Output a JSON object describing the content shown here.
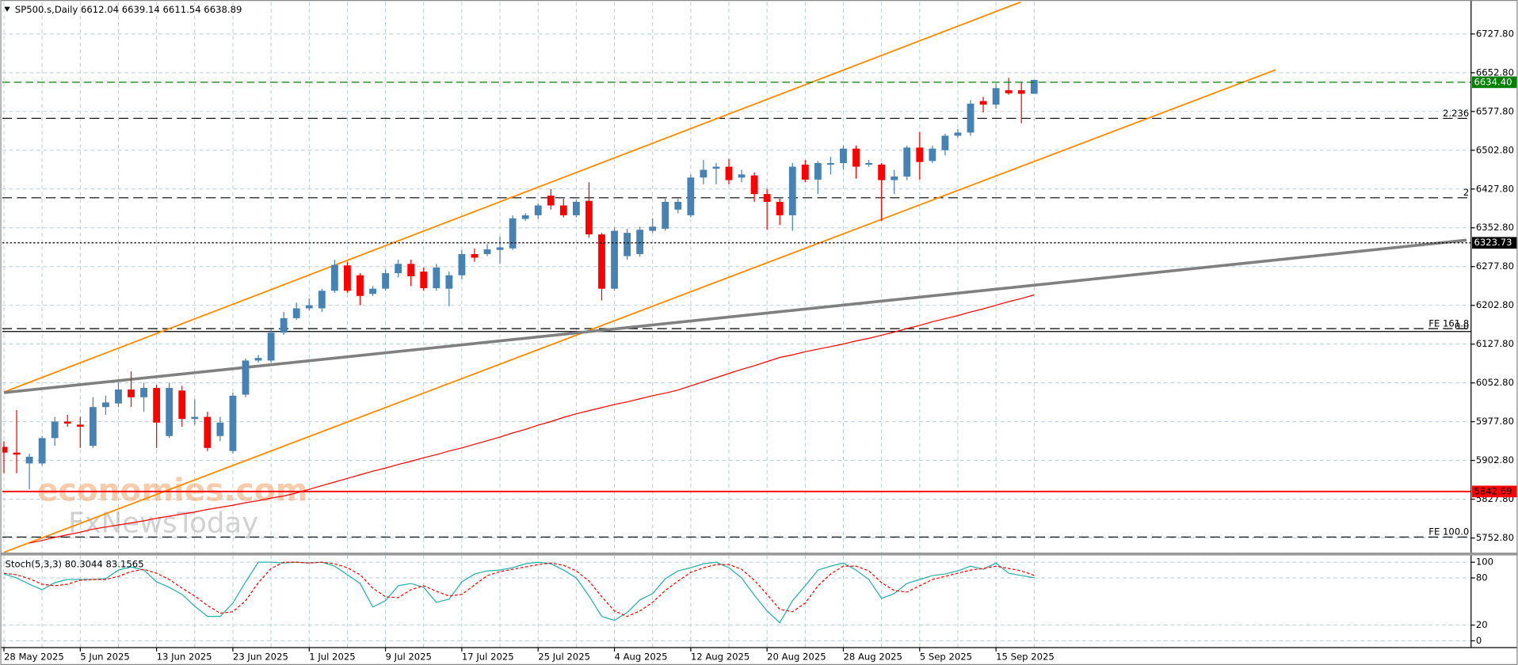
{
  "chart_data": [
    {
      "type": "candlestick",
      "title": "SP500.s,Daily",
      "categories": [
        "28 May 2025",
        null,
        null,
        null,
        null,
        null,
        "5 Jun 2025",
        null,
        null,
        null,
        null,
        null,
        "13 Jun 2025",
        null,
        null,
        null,
        null,
        null,
        "23 Jun 2025",
        null,
        null,
        null,
        null,
        null,
        "1 Jul 2025",
        null,
        null,
        null,
        null,
        null,
        "9 Jul 2025",
        null,
        null,
        null,
        null,
        null,
        "17 Jul 2025",
        null,
        null,
        null,
        null,
        null,
        "25 Jul 2025",
        null,
        null,
        null,
        null,
        null,
        "4 Aug 2025",
        null,
        null,
        null,
        null,
        null,
        "12 Aug 2025",
        null,
        null,
        null,
        null,
        null,
        "20 Aug 2025",
        null,
        null,
        null,
        null,
        null,
        "28 Aug 2025",
        null,
        null,
        null,
        null,
        null,
        "5 Sep 2025",
        null,
        null,
        null,
        null,
        null,
        "15 Sep 2025",
        null,
        null,
        null
      ],
      "open": [
        5929,
        5918,
        5897,
        5897,
        5946,
        5978,
        5972,
        5931,
        6006,
        6013,
        6040,
        6025,
        6043,
        5950,
        6038,
        5983,
        5987,
        5950,
        5921,
        6030,
        6096,
        6096,
        6150,
        6178,
        6197,
        6197,
        6231,
        6280,
        6261,
        6225,
        6235,
        6265,
        6283,
        6268,
        6236,
        6235,
        6261,
        6302,
        6302,
        6310,
        6313,
        6370,
        6377,
        6415,
        6396,
        6377,
        6405,
        6340,
        6235,
        6298,
        6302,
        6347,
        6351,
        6388,
        6377,
        6450,
        6467,
        6471,
        6450,
        6454,
        6418,
        6403,
        6377,
        6475,
        6446,
        6475,
        6478,
        6506,
        6475,
        6475,
        6445,
        6452,
        6508,
        6482,
        6503,
        6531,
        6537,
        6598,
        6591,
        6619,
        6619,
        6612.04
      ],
      "high": [
        5940,
        6000,
        5916,
        5950,
        5987,
        5991,
        5987,
        6025,
        6028,
        6053,
        6075,
        6053,
        6049,
        6053,
        6047,
        6021,
        5997,
        5987,
        6034,
        6100,
        6107,
        6156,
        6190,
        6208,
        6216,
        6235,
        6291,
        6287,
        6265,
        6240,
        6272,
        6291,
        6291,
        6276,
        6283,
        6268,
        6310,
        6313,
        6321,
        6336,
        6377,
        6381,
        6400,
        6428,
        6409,
        6407,
        6441,
        6343,
        6353,
        6351,
        6355,
        6371,
        6409,
        6409,
        6456,
        6484,
        6478,
        6486,
        6465,
        6460,
        6428,
        6409,
        6478,
        6484,
        6482,
        6490,
        6512,
        6512,
        6484,
        6478,
        6465,
        6512,
        6538,
        6512,
        6535,
        6544,
        6600,
        6606,
        6632,
        6643,
        6634,
        6639.14
      ],
      "low": [
        5878,
        5878,
        5847,
        5893,
        5931,
        5968,
        5927,
        5927,
        5991,
        6006,
        6006,
        5997,
        5927,
        5946,
        5968,
        5972,
        5921,
        5940,
        5916,
        6025,
        6092,
        6092,
        6146,
        6175,
        6193,
        6190,
        6227,
        6227,
        6203,
        6221,
        6231,
        6257,
        6240,
        6231,
        6231,
        6201,
        6253,
        6287,
        6298,
        6283,
        6310,
        6366,
        6370,
        6388,
        6373,
        6373,
        6334,
        6212,
        6231,
        6291,
        6297,
        6343,
        6347,
        6381,
        6373,
        6437,
        6437,
        6437,
        6441,
        6403,
        6349,
        6358,
        6347,
        6441,
        6418,
        6456,
        6465,
        6448,
        6471,
        6366,
        6418,
        6445,
        6446,
        6478,
        6493,
        6527,
        6531,
        6576,
        6583,
        6610,
        6555,
        6611.54
      ],
      "close": [
        5918,
        5914,
        5910,
        5946,
        5978,
        5974,
        5968,
        6006,
        6015,
        6040,
        6025,
        6043,
        5976,
        6043,
        5983,
        5987,
        5927,
        5976,
        6028,
        6096,
        6101,
        6150,
        6178,
        6197,
        6203,
        6231,
        6281,
        6231,
        6221,
        6235,
        6265,
        6283,
        6259,
        6236,
        6276,
        6261,
        6302,
        6295,
        6311,
        6315,
        6371,
        6377,
        6396,
        6396,
        6377,
        6403,
        6340,
        6235,
        6347,
        6343,
        6349,
        6355,
        6403,
        6403,
        6450,
        6465,
        6471,
        6445,
        6456,
        6418,
        6403,
        6377,
        6471,
        6446,
        6478,
        6478,
        6506,
        6471,
        6478,
        6445,
        6452,
        6508,
        6480,
        6506,
        6531,
        6537,
        6593,
        6591,
        6623,
        6613,
        6612,
        6638.89
      ],
      "up_color": "#4682b4",
      "down_color": "#ff0000",
      "ma": {
        "color": "#ff0000",
        "values": [
          null,
          null,
          5743,
          5748,
          5754,
          5759,
          5764,
          5770,
          5774,
          5778,
          5782,
          5786,
          5791,
          5795,
          5799,
          5803,
          5808,
          5812,
          5816,
          5821,
          5825,
          5830,
          5834,
          5840,
          5847,
          5854,
          5861,
          5868,
          5875,
          5882,
          5888,
          5895,
          5901,
          5908,
          5914,
          5921,
          5927,
          5934,
          5941,
          5948,
          5956,
          5963,
          5971,
          5978,
          5986,
          5993,
          5999,
          6005,
          6011,
          6016,
          6022,
          6028,
          6033,
          6039,
          6047,
          6055,
          6063,
          6071,
          6079,
          6086,
          6094,
          6102,
          6107,
          6113,
          6118,
          6123,
          6128,
          6134,
          6139,
          6145,
          6151,
          6158,
          6164,
          6171,
          6177,
          6183,
          6190,
          6196,
          6203,
          6210,
          6216,
          6223
        ]
      },
      "trendlines": [
        {
          "color": "#ff8c00",
          "points": [
            [
              0,
              6035
            ],
            [
              80,
              6790
            ]
          ]
        },
        {
          "color": "#ff8c00",
          "points": [
            [
              0,
              5725
            ],
            [
              100,
              6658.5
            ]
          ]
        },
        {
          "color": "#808080",
          "points": [
            [
              0,
              6034
            ],
            [
              115,
              6329
            ]
          ]
        }
      ],
      "levels": [
        {
          "name": "2.236",
          "value": 6564.6,
          "style": "dashed",
          "color": "#000000"
        },
        {
          "name": "2",
          "value": 6410.9,
          "style": "dashed",
          "color": "#000000"
        },
        {
          "name": "FE 161.8",
          "value": 6157.8,
          "style": "dashed",
          "color": "#000000"
        },
        {
          "name": "0.0",
          "value": 6152.2,
          "style": "solid",
          "color": "#000000"
        },
        {
          "name": "FE 100.0",
          "value": 5754.7,
          "style": "dashed",
          "color": "#000000"
        }
      ],
      "price_lines": [
        {
          "value": 6634.4,
          "label": "6634.40",
          "color": "#008000",
          "style": "dashed"
        },
        {
          "value": 6323.73,
          "label": "6323.73",
          "color": "#000000",
          "style": "dotted"
        },
        {
          "value": 5842.69,
          "label": "5842.69",
          "color": "#ff0000",
          "style": "solid"
        }
      ],
      "ylim": [
        5724.6,
        6789.7
      ],
      "yticks": [
        {
          "value": 5752.8,
          "label": "5752.80"
        },
        {
          "value": 5827.8,
          "label": "5827.80"
        },
        {
          "value": 5902.8,
          "label": "5902.80"
        },
        {
          "value": 5977.8,
          "label": "5977.80"
        },
        {
          "value": 6052.8,
          "label": "6052.80"
        },
        {
          "value": 6127.8,
          "label": "6127.80"
        },
        {
          "value": 6202.8,
          "label": "6202.80"
        },
        {
          "value": 6277.8,
          "label": "6277.80"
        },
        {
          "value": 6352.8,
          "label": "6352.80"
        },
        {
          "value": 6427.8,
          "label": "6427.80"
        },
        {
          "value": 6502.8,
          "label": "6502.80"
        },
        {
          "value": 6577.8,
          "label": "6577.80"
        },
        {
          "value": 6652.8,
          "label": "6652.80"
        },
        {
          "value": 6727.8,
          "label": "6727.80"
        }
      ],
      "grid": true,
      "watermark": [
        "economies.com",
        "FxNewsToday"
      ]
    },
    {
      "type": "line",
      "title": "Stoch(5,3,3)",
      "series": [
        {
          "color": "#20b2aa",
          "style": "solid",
          "values": [
            85,
            80,
            72,
            65,
            74,
            78,
            78,
            78,
            79,
            90,
            94,
            90,
            75,
            68,
            59,
            44,
            31,
            31,
            48,
            75,
            100,
            100,
            99,
            100,
            99,
            100,
            95,
            84,
            73,
            43,
            51,
            70,
            73,
            68,
            49,
            53,
            75,
            85,
            89,
            90,
            93,
            98,
            100,
            98,
            90,
            80,
            57,
            31,
            26,
            36,
            52,
            60,
            79,
            89,
            93,
            98,
            100,
            93,
            80,
            58,
            38,
            23,
            51,
            70,
            90,
            95,
            99,
            90,
            78,
            54,
            60,
            73,
            78,
            83,
            85,
            89,
            95,
            91,
            99,
            86,
            83,
            80.3044
          ]
        },
        {
          "color": "#ff0000",
          "style": "dashed",
          "values": [
            86,
            84,
            79,
            72,
            70,
            72,
            77,
            78,
            78,
            82,
            88,
            91,
            86,
            78,
            67,
            57,
            45,
            35,
            37,
            51,
            74,
            92,
            100,
            100,
            99,
            100,
            98,
            93,
            84,
            67,
            56,
            55,
            65,
            70,
            63,
            57,
            59,
            71,
            83,
            88,
            91,
            94,
            97,
            99,
            96,
            89,
            76,
            56,
            38,
            31,
            38,
            49,
            64,
            76,
            87,
            93,
            97,
            97,
            91,
            77,
            59,
            40,
            37,
            48,
            70,
            85,
            95,
            95,
            89,
            74,
            64,
            62,
            70,
            78,
            82,
            86,
            90,
            92,
            95,
            92,
            89,
            83.1565
          ]
        }
      ],
      "ylim": [
        -8.6,
        108.6
      ],
      "yticks": [
        0,
        20,
        80,
        100
      ],
      "grid": true
    }
  ]
}
